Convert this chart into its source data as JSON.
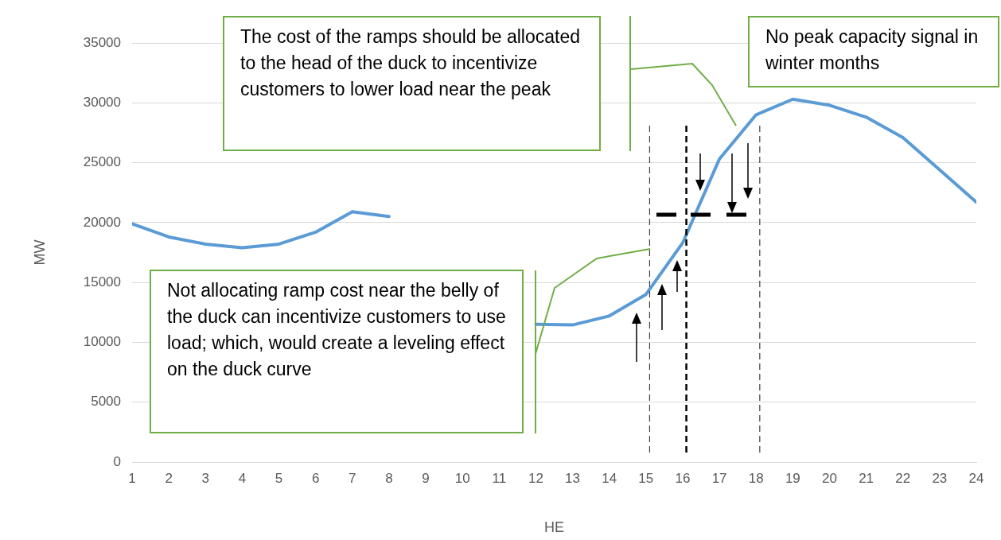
{
  "chart_data": {
    "type": "line",
    "xlabel": "HE",
    "ylabel": "MW",
    "x": [
      1,
      2,
      3,
      4,
      5,
      6,
      7,
      8,
      9,
      10,
      11,
      12,
      13,
      14,
      15,
      16,
      17,
      18,
      19,
      20,
      21,
      22,
      23,
      24
    ],
    "series": [
      {
        "color": "#5b9bd5",
        "values": [
          19900,
          18800,
          18200,
          17900,
          18200,
          19200,
          20900,
          20500,
          null,
          null,
          null,
          11500,
          11450,
          12200,
          14000,
          18300,
          25300,
          29000,
          30300,
          29800,
          28800,
          27100,
          24400,
          21700
        ]
      }
    ],
    "xlim": [
      1,
      24
    ],
    "xticks": [
      1,
      2,
      3,
      4,
      5,
      6,
      7,
      8,
      9,
      10,
      11,
      12,
      13,
      14,
      15,
      16,
      17,
      18,
      19,
      20,
      21,
      22,
      23,
      24
    ],
    "ylim": [
      0,
      35000
    ],
    "yticks": [
      0,
      5000,
      10000,
      15000,
      20000,
      25000,
      30000,
      35000
    ],
    "grid": "y",
    "legend": false,
    "marker": "none",
    "line_style": "solid",
    "ref_lines": [
      {
        "axis": "x",
        "value": 15.1,
        "color": "#404040",
        "line_style": "dashed"
      },
      {
        "axis": "x",
        "value": 16.1,
        "color": "#000000",
        "line_style": "dashed"
      },
      {
        "axis": "x",
        "value": 18.1,
        "color": "#404040",
        "line_style": "dashed"
      }
    ],
    "annotations": [
      "The cost of the ramps should be allocated to the head of the duck to incentivize customers to lower load near the peak",
      "No peak capacity signal in winter months",
      "Not allocating ramp cost near the belly of the duck can incentivize customers to use load; which, would create a leveling effect on the duck curve"
    ]
  }
}
